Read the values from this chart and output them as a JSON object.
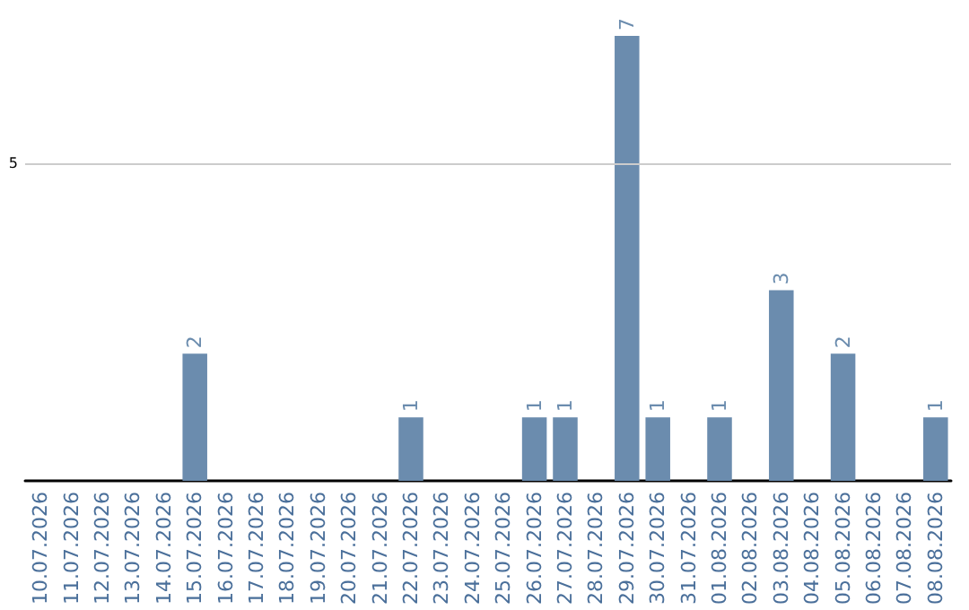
{
  "chart_data": {
    "type": "bar",
    "categories": [
      "10.07.2026",
      "11.07.2026",
      "12.07.2026",
      "13.07.2026",
      "14.07.2026",
      "15.07.2026",
      "16.07.2026",
      "17.07.2026",
      "18.07.2026",
      "19.07.2026",
      "20.07.2026",
      "21.07.2026",
      "22.07.2026",
      "23.07.2026",
      "24.07.2026",
      "25.07.2026",
      "26.07.2026",
      "27.07.2026",
      "28.07.2026",
      "29.07.2026",
      "30.07.2026",
      "31.07.2026",
      "01.08.2026",
      "02.08.2026",
      "03.08.2026",
      "04.08.2026",
      "05.08.2026",
      "06.08.2026",
      "07.08.2026",
      "08.08.2026"
    ],
    "values": [
      null,
      null,
      null,
      null,
      null,
      2,
      null,
      null,
      null,
      null,
      null,
      null,
      1,
      null,
      null,
      null,
      1,
      1,
      null,
      7,
      1,
      null,
      1,
      null,
      3,
      null,
      2,
      null,
      null,
      1
    ],
    "color": "#6b8cae",
    "ref_lines": [
      {
        "axis": "y",
        "value": 5,
        "label": "5",
        "color": "#cccccc"
      }
    ],
    "data_labels": true
  }
}
